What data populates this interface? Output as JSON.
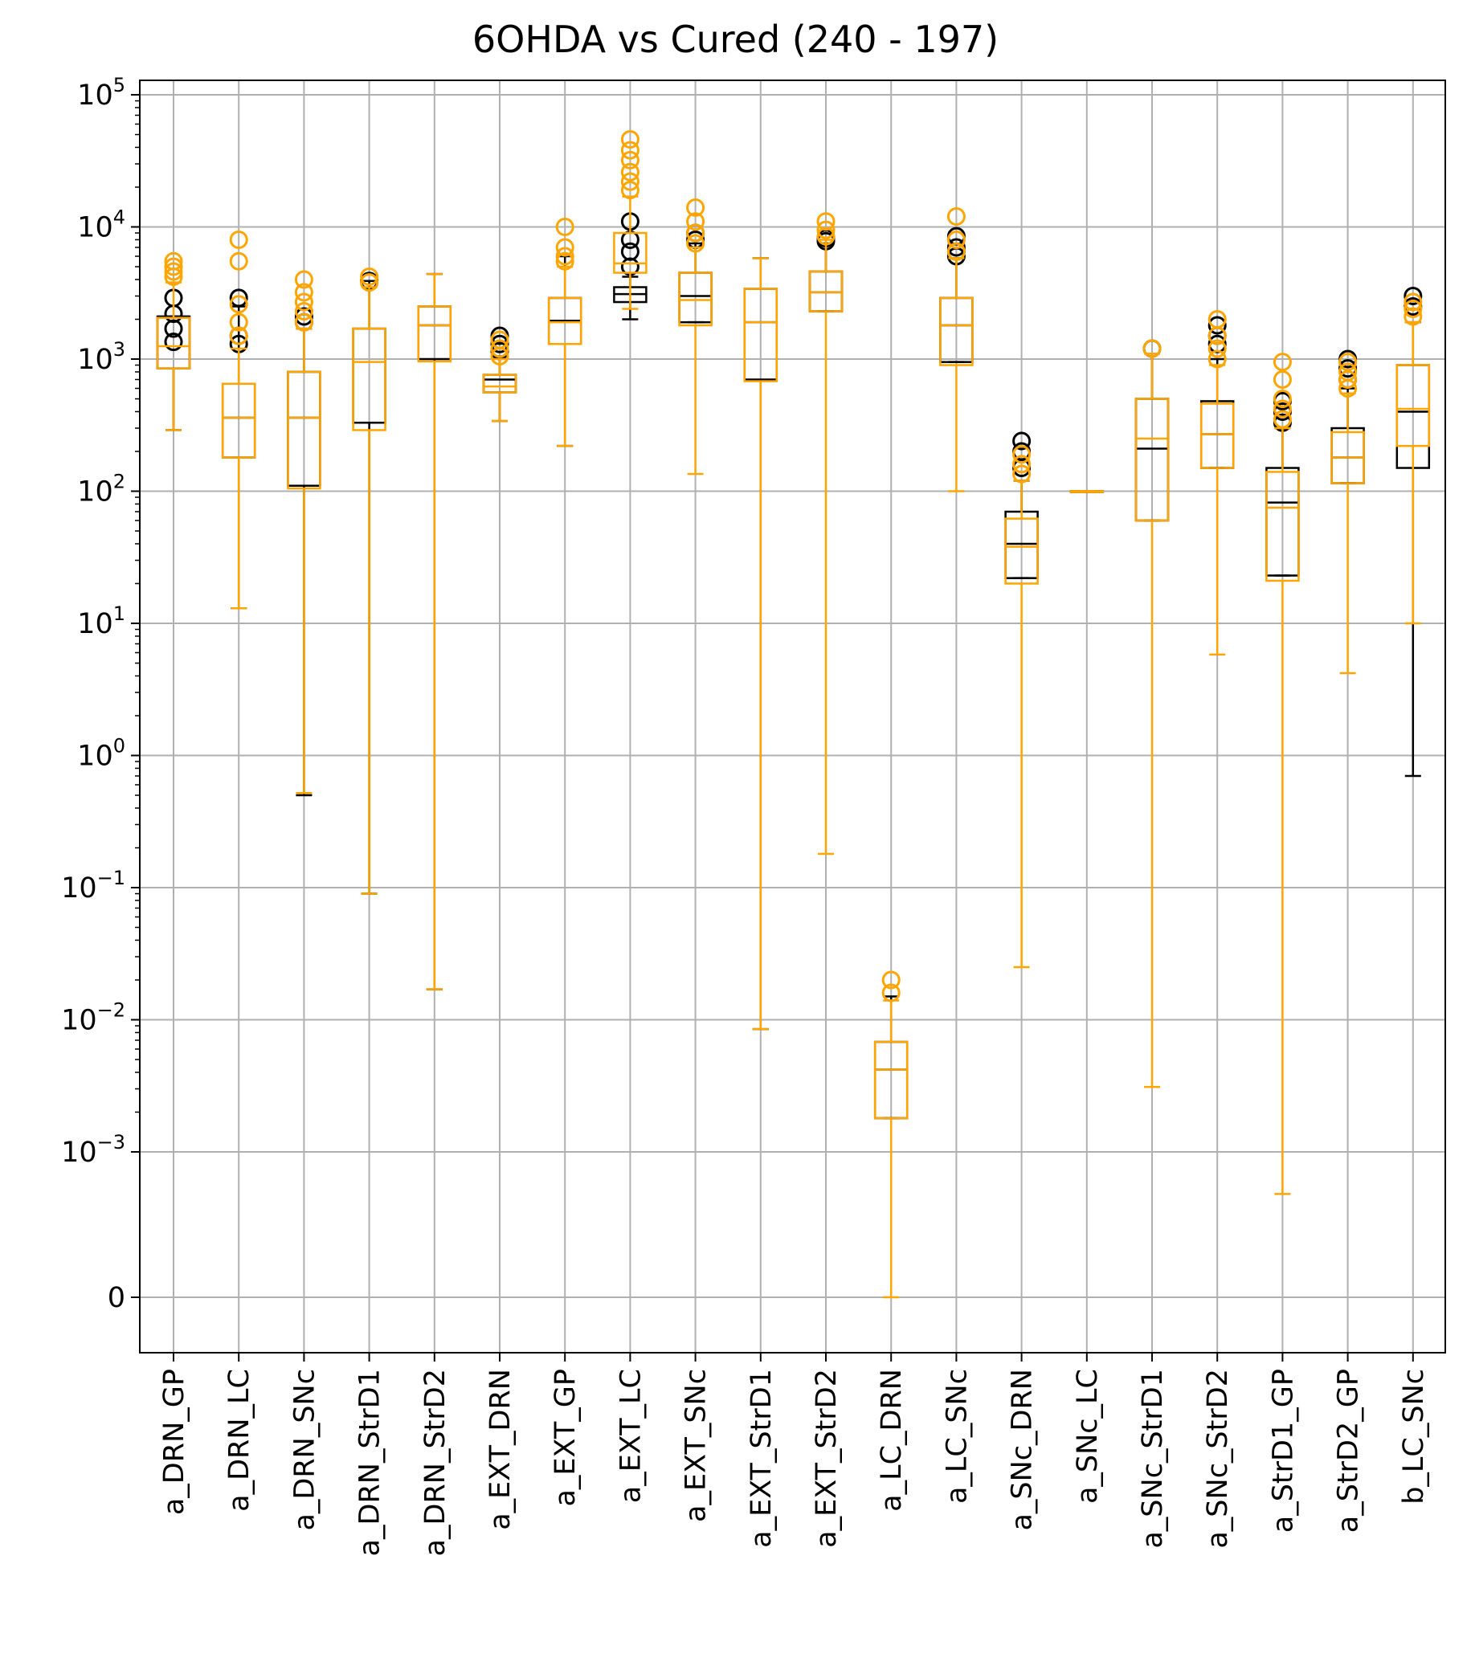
{
  "chart_data": {
    "type": "box",
    "title": "6OHDA vs Cured (240 - 197)",
    "xlabel": "",
    "ylabel": "",
    "y_scale": "symlog",
    "y_ticks": [
      {
        "value": 100000,
        "base": "10",
        "exp": "5"
      },
      {
        "value": 10000,
        "base": "10",
        "exp": "4"
      },
      {
        "value": 1000,
        "base": "10",
        "exp": "3"
      },
      {
        "value": 100,
        "base": "10",
        "exp": "2"
      },
      {
        "value": 10,
        "base": "10",
        "exp": "1"
      },
      {
        "value": 1,
        "base": "10",
        "exp": "0"
      },
      {
        "value": 0.1,
        "base": "10",
        "exp": "−1"
      },
      {
        "value": 0.01,
        "base": "10",
        "exp": "−2"
      },
      {
        "value": 0.001,
        "base": "10",
        "exp": "−3"
      },
      {
        "value": 0,
        "base": "0",
        "exp": ""
      }
    ],
    "grid": true,
    "colors": {
      "group_a": "#000000",
      "group_b": "#FFA500",
      "grid": "#b0b0b0"
    },
    "categories": [
      "a_DRN_GP",
      "a_DRN_LC",
      "a_DRN_SNc",
      "a_DRN_StrD1",
      "a_DRN_StrD2",
      "a_EXT_DRN",
      "a_EXT_GP",
      "a_EXT_LC",
      "a_EXT_SNc",
      "a_EXT_StrD1",
      "a_EXT_StrD2",
      "a_LC_DRN",
      "a_LC_SNc",
      "a_SNc_DRN",
      "a_SNc_LC",
      "a_SNc_StrD1",
      "a_SNc_StrD2",
      "a_StrD1_GP",
      "a_StrD2_GP",
      "b_LC_SNc"
    ],
    "series": [
      {
        "color": "#000000",
        "boxes": [
          {
            "whislo": 290,
            "q1": 850,
            "med": 2100,
            "q3": 2100,
            "whishi": 2100,
            "fliers": [
              1350,
              1700,
              2200,
              2900
            ]
          },
          {
            "whislo": 13,
            "q1": 180,
            "med": 360,
            "q3": 650,
            "whishi": 2500,
            "fliers": [
              1300,
              1500,
              2900
            ]
          },
          {
            "whislo": 0.5,
            "q1": 110,
            "med": 360,
            "q3": 800,
            "whishi": 1700,
            "fliers": [
              1900,
              2100
            ]
          },
          {
            "whislo": 0.09,
            "q1": 330,
            "med": 330,
            "q3": 1700,
            "whishi": 3900,
            "fliers": [
              3900
            ]
          },
          {
            "whislo": 0.017,
            "q1": 1000,
            "med": 1800,
            "q3": 2500,
            "whishi": 4400,
            "fliers": []
          },
          {
            "whislo": 340,
            "q1": 560,
            "med": 700,
            "q3": 760,
            "whishi": 1050,
            "fliers": [
              1150,
              1300,
              1500
            ]
          },
          {
            "whislo": 220,
            "q1": 1300,
            "med": 1950,
            "q3": 2900,
            "whishi": 6000,
            "fliers": []
          },
          {
            "whislo": 2000,
            "q1": 2700,
            "med": 3100,
            "q3": 3500,
            "whishi": 4200,
            "fliers": [
              5000,
              6500,
              8000,
              11000
            ]
          },
          {
            "whislo": 1900,
            "q1": 1900,
            "med": 3000,
            "q3": 4500,
            "whishi": 7500,
            "fliers": [
              8000,
              9000
            ]
          },
          {
            "whislo": 0.0085,
            "q1": 700,
            "med": 1900,
            "q3": 3400,
            "whishi": 5800,
            "fliers": []
          },
          {
            "whislo": 2300,
            "q1": 2300,
            "med": 3200,
            "q3": 4600,
            "whishi": 7500,
            "fliers": [
              7800,
              8200
            ]
          },
          {
            "whislo": 0.0018,
            "q1": 0.0018,
            "med": 0.0042,
            "q3": 0.0068,
            "whishi": 0.015,
            "fliers": []
          },
          {
            "whislo": 950,
            "q1": 950,
            "med": 1800,
            "q3": 2900,
            "whishi": 5800,
            "fliers": [
              6000,
              6500,
              7000,
              8500
            ]
          },
          {
            "whislo": 22,
            "q1": 22,
            "med": 40,
            "q3": 70,
            "whishi": 120,
            "fliers": [
              150,
              200,
              240
            ]
          },
          {
            "whislo": 100,
            "q1": 100,
            "med": 100,
            "q3": 100,
            "whishi": 100,
            "fliers": []
          },
          {
            "whislo": 60,
            "q1": 60,
            "med": 210,
            "q3": 500,
            "whishi": 1100,
            "fliers": [
              1200
            ]
          },
          {
            "whislo": 150,
            "q1": 150,
            "med": 270,
            "q3": 480,
            "whishi": 1000,
            "fliers": [
              1300,
              1500,
              1800
            ]
          },
          {
            "whislo": 23,
            "q1": 23,
            "med": 82,
            "q3": 150,
            "whishi": 300,
            "fliers": [
              330,
              400,
              480
            ]
          },
          {
            "whislo": 115,
            "q1": 115,
            "med": 180,
            "q3": 300,
            "whishi": 600,
            "fliers": [
              700,
              850,
              1000
            ]
          },
          {
            "whislo": 0.7,
            "q1": 150,
            "med": 400,
            "q3": 900,
            "whishi": 1900,
            "fliers": [
              2500,
              3000
            ]
          }
        ]
      },
      {
        "color": "#FFA500",
        "boxes": [
          {
            "whislo": 290,
            "q1": 850,
            "med": 1250,
            "q3": 2050,
            "whishi": 3800,
            "fliers": [
              4200,
              4600,
              5000,
              5500
            ]
          },
          {
            "whislo": 13,
            "q1": 180,
            "med": 360,
            "q3": 650,
            "whishi": 1200,
            "fliers": [
              1500,
              1900,
              2600,
              5500,
              8000
            ]
          },
          {
            "whislo": 0.52,
            "q1": 105,
            "med": 360,
            "q3": 800,
            "whishi": 1700,
            "fliers": [
              1900,
              2300,
              2700,
              3200,
              4000
            ]
          },
          {
            "whislo": 0.09,
            "q1": 290,
            "med": 950,
            "q3": 1700,
            "whishi": 3500,
            "fliers": [
              3800,
              4200
            ]
          },
          {
            "whislo": 0.017,
            "q1": 960,
            "med": 1800,
            "q3": 2500,
            "whishi": 4400,
            "fliers": []
          },
          {
            "whislo": 340,
            "q1": 560,
            "med": 620,
            "q3": 760,
            "whishi": 1000,
            "fliers": [
              1050,
              1200,
              1400
            ]
          },
          {
            "whislo": 220,
            "q1": 1300,
            "med": 1900,
            "q3": 2900,
            "whishi": 5000,
            "fliers": [
              5500,
              6000,
              7000,
              10000
            ]
          },
          {
            "whislo": 2400,
            "q1": 4500,
            "med": 5300,
            "q3": 9000,
            "whishi": 17000,
            "fliers": [
              19000,
              22000,
              26000,
              32000,
              38000,
              46000
            ]
          },
          {
            "whislo": 135,
            "q1": 1800,
            "med": 2800,
            "q3": 4500,
            "whishi": 7000,
            "fliers": [
              7500,
              9000,
              11000,
              14000
            ]
          },
          {
            "whislo": 0.0085,
            "q1": 680,
            "med": 1900,
            "q3": 3400,
            "whishi": 5800,
            "fliers": []
          },
          {
            "whislo": 0.18,
            "q1": 2300,
            "med": 3200,
            "q3": 4600,
            "whishi": 8000,
            "fliers": [
              8500,
              9500,
              11000
            ]
          },
          {
            "whislo": 4e-06,
            "q1": 0.0018,
            "med": 0.0042,
            "q3": 0.0068,
            "whishi": 0.014,
            "fliers": [
              0.016,
              0.02
            ]
          },
          {
            "whislo": 100,
            "q1": 900,
            "med": 1800,
            "q3": 2900,
            "whishi": 5800,
            "fliers": [
              6500,
              8000,
              12000
            ]
          },
          {
            "whislo": 0.025,
            "q1": 20,
            "med": 38,
            "q3": 62,
            "whishi": 120,
            "fliers": [
              135,
              160,
              190
            ]
          },
          {
            "whislo": 100,
            "q1": 100,
            "med": 100,
            "q3": 100,
            "whishi": 100,
            "fliers": []
          },
          {
            "whislo": 0.0031,
            "q1": 60,
            "med": 250,
            "q3": 500,
            "whishi": 1100,
            "fliers": [
              1200
            ]
          },
          {
            "whislo": 5.8,
            "q1": 150,
            "med": 270,
            "q3": 460,
            "whishi": 900,
            "fliers": [
              1000,
              1200,
              1500,
              2000
            ]
          },
          {
            "whislo": 0.00048,
            "q1": 21,
            "med": 75,
            "q3": 140,
            "whishi": 300,
            "fliers": [
              350,
              420,
              500,
              700,
              950
            ]
          },
          {
            "whislo": 4.2,
            "q1": 115,
            "med": 180,
            "q3": 280,
            "whishi": 550,
            "fliers": [
              600,
              700,
              800,
              950
            ]
          },
          {
            "whislo": 10,
            "q1": 220,
            "med": 420,
            "q3": 900,
            "whishi": 1900,
            "fliers": [
              2100,
              2400,
              2700
            ]
          }
        ]
      }
    ]
  }
}
